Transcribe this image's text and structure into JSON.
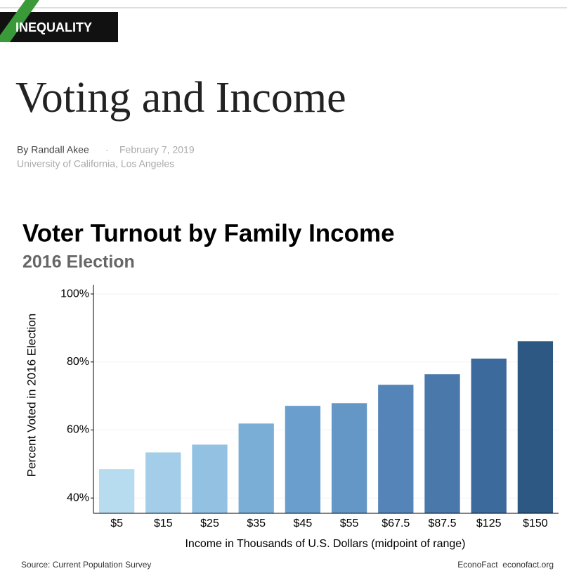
{
  "header": {
    "tag": "INEQUALITY",
    "title": "Voting and Income",
    "author": "By Randall Akee",
    "separator": "·",
    "date": "February 7, 2019",
    "affiliation": "University of California, Los Angeles"
  },
  "chart_data": {
    "type": "bar",
    "title": "Voter Turnout by Family Income",
    "subtitle": "2016 Election",
    "x_label": "Income in Thousands of U.S. Dollars (midpoint of range)",
    "y_label": "Percent Voted in 2016 Election",
    "categories": [
      "$5",
      "$15",
      "$25",
      "$35",
      "$45",
      "$55",
      "$67.5",
      "$87.5",
      "$125",
      "$150"
    ],
    "values": [
      48.5,
      53.4,
      55.7,
      61.9,
      67.1,
      67.9,
      73.3,
      76.4,
      81.0,
      86.1
    ],
    "colors": [
      "#b8dcef",
      "#a3cde8",
      "#92c1e2",
      "#7aaed6",
      "#6a9ecc",
      "#6597c6",
      "#5585b8",
      "#4a78ab",
      "#3d6a9c",
      "#2d5884"
    ],
    "ylim": [
      35.5,
      102.7
    ],
    "yticks": [
      {
        "value": 40,
        "label": "40%"
      },
      {
        "value": 60,
        "label": "60%"
      },
      {
        "value": 80,
        "label": "80%"
      },
      {
        "value": 100,
        "label": "100%"
      }
    ],
    "grid": true,
    "source": "Source: Current Population Survey",
    "credit": "EconoFact  econofact.org"
  }
}
